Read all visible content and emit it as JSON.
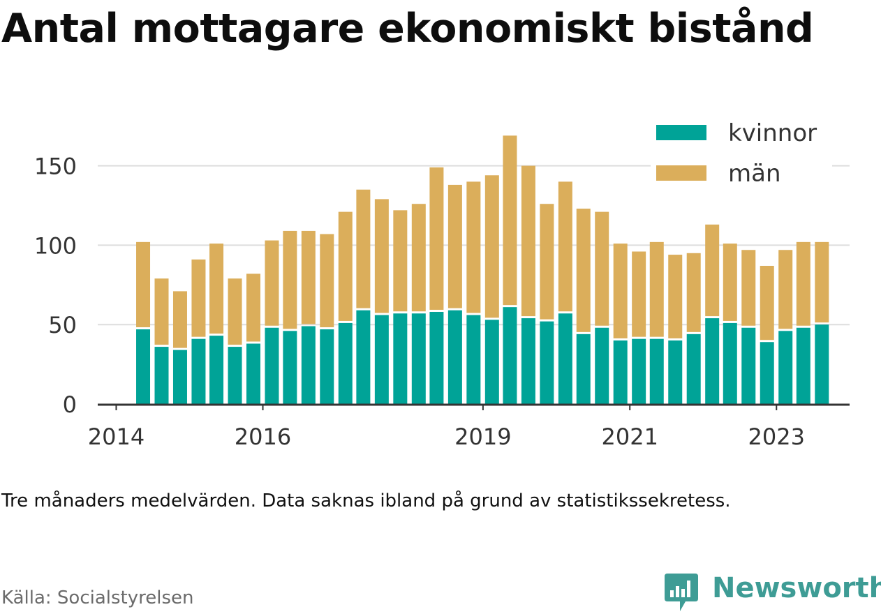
{
  "title": "Antal mottagare ekonomiskt bistånd",
  "footnote": "Tre månaders medelvärden. Data saknas ibland på grund av statistikssekretess.",
  "source": "Källa: Socialstyrelsen",
  "brand": {
    "name": "Newsworthy",
    "icon": "bar-chart-speech-bubble-icon",
    "color": "#3e9c95"
  },
  "colors": {
    "kvinnor": "#00a397",
    "man": "#dbae5b",
    "grid": "#dddddd",
    "axis": "#333333"
  },
  "chart_data": {
    "type": "bar",
    "stacked": true,
    "title": "Antal mottagare ekonomiskt bistånd",
    "xlabel": "",
    "ylabel": "",
    "ylim": [
      0,
      175
    ],
    "yticks": [
      0,
      50,
      100,
      150
    ],
    "xticks": [
      {
        "label": "2014",
        "date": "2014-01-01"
      },
      {
        "label": "2016",
        "date": "2016-01-01"
      },
      {
        "label": "2019",
        "date": "2019-01-01"
      },
      {
        "label": "2021",
        "date": "2021-01-01"
      },
      {
        "label": "2023",
        "date": "2023-01-01"
      }
    ],
    "xlim": [
      "2013-10-01",
      "2023-12-31"
    ],
    "grid": true,
    "legend": "top-right",
    "categories": [
      "2014-05",
      "2014-08",
      "2014-11",
      "2015-02",
      "2015-05",
      "2015-08",
      "2015-11",
      "2016-02",
      "2016-05",
      "2016-08",
      "2016-11",
      "2017-02",
      "2017-05",
      "2017-08",
      "2017-11",
      "2018-02",
      "2018-05",
      "2018-08",
      "2018-11",
      "2019-02",
      "2019-05",
      "2019-08",
      "2019-11",
      "2020-02",
      "2020-05",
      "2020-08",
      "2020-11",
      "2021-02",
      "2021-05",
      "2021-08",
      "2021-11",
      "2022-02",
      "2022-05",
      "2022-08",
      "2022-11",
      "2023-02",
      "2023-05",
      "2023-08"
    ],
    "series": [
      {
        "name": "kvinnor",
        "color": "#00a397",
        "values": [
          47,
          36,
          34,
          41,
          43,
          36,
          38,
          48,
          46,
          49,
          47,
          51,
          59,
          56,
          57,
          57,
          58,
          59,
          56,
          53,
          61,
          54,
          52,
          57,
          44,
          48,
          40,
          41,
          41,
          40,
          44,
          54,
          51,
          48,
          39,
          46,
          48,
          50
        ]
      },
      {
        "name": "män",
        "color": "#dbae5b",
        "values": [
          55,
          43,
          37,
          50,
          58,
          43,
          44,
          55,
          63,
          60,
          60,
          70,
          76,
          73,
          65,
          69,
          91,
          79,
          84,
          91,
          108,
          96,
          74,
          83,
          79,
          73,
          61,
          55,
          61,
          54,
          51,
          59,
          50,
          49,
          48,
          51,
          54,
          52
        ]
      }
    ]
  }
}
